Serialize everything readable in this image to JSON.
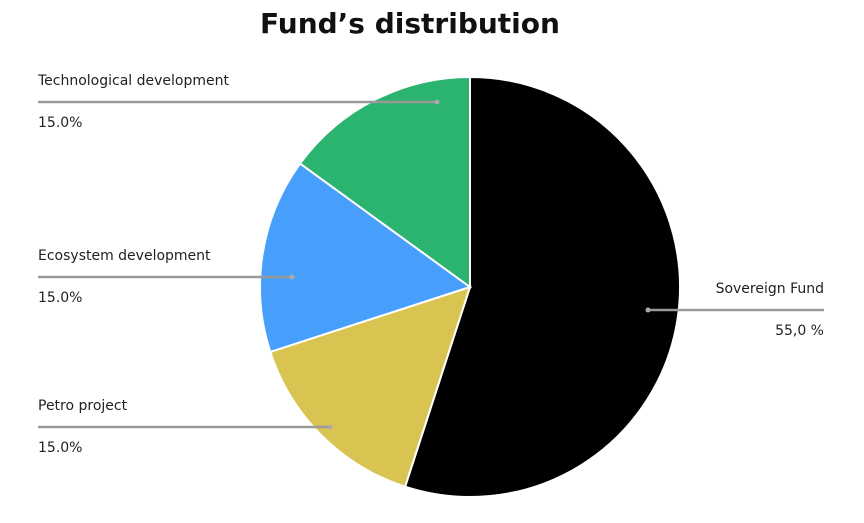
{
  "chart_data": {
    "type": "pie",
    "title": "Fund’s distribution",
    "categories": [
      "Sovereign Fund",
      "Petro project",
      "Ecosystem development",
      "Technological development"
    ],
    "values": [
      55,
      15,
      15,
      15
    ],
    "value_labels": [
      "55,0 %",
      "15.0%",
      "15.0%",
      "15.0%"
    ],
    "colors": [
      "#000000",
      "#d9c452",
      "#489ffb",
      "#2ab46f"
    ]
  }
}
